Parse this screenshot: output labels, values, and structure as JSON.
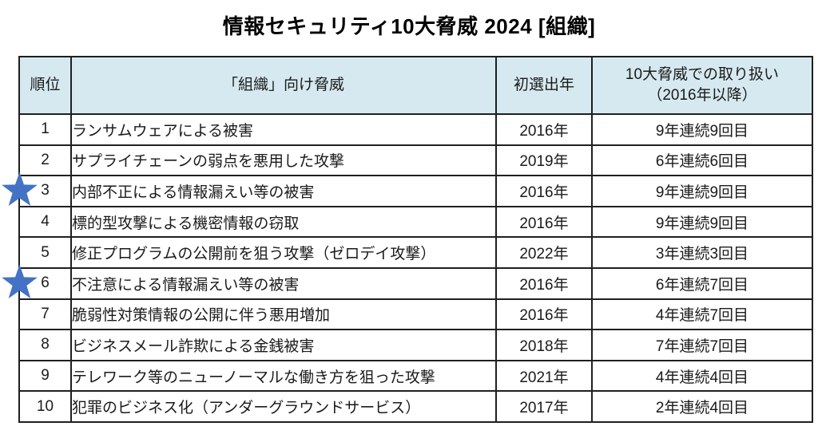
{
  "title": "情報セキュリティ10大脅威 2024 [組織]",
  "colors": {
    "header_bg": "#d6e9f0",
    "star_blue": "#4472c4",
    "border": "#1f1f1f"
  },
  "table": {
    "headers": [
      "順位",
      "「組織」向け脅威",
      "初選出年",
      "10大脅威での取り扱い\n（2016年以降）"
    ],
    "rows": [
      {
        "rank": "1",
        "threat": "ランサムウェアによる被害",
        "first_year": "2016年",
        "history": "9年連続9回目",
        "starred": false
      },
      {
        "rank": "2",
        "threat": "サプライチェーンの弱点を悪用した攻撃",
        "first_year": "2019年",
        "history": "6年連続6回目",
        "starred": false
      },
      {
        "rank": "3",
        "threat": "内部不正による情報漏えい等の被害",
        "first_year": "2016年",
        "history": "9年連続9回目",
        "starred": true
      },
      {
        "rank": "4",
        "threat": "標的型攻撃による機密情報の窃取",
        "first_year": "2016年",
        "history": "9年連続9回目",
        "starred": false
      },
      {
        "rank": "5",
        "threat": "修正プログラムの公開前を狙う攻撃（ゼロデイ攻撃）",
        "first_year": "2022年",
        "history": "3年連続3回目",
        "starred": false
      },
      {
        "rank": "6",
        "threat": "不注意による情報漏えい等の被害",
        "first_year": "2016年",
        "history": "6年連続7回目",
        "starred": true
      },
      {
        "rank": "7",
        "threat": "脆弱性対策情報の公開に伴う悪用増加",
        "first_year": "2016年",
        "history": "4年連続7回目",
        "starred": false
      },
      {
        "rank": "8",
        "threat": "ビジネスメール詐欺による金銭被害",
        "first_year": "2018年",
        "history": "7年連続7回目",
        "starred": false
      },
      {
        "rank": "9",
        "threat": "テレワーク等のニューノーマルな働き方を狙った攻撃",
        "first_year": "2021年",
        "history": "4年連続4回目",
        "starred": false
      },
      {
        "rank": "10",
        "threat": "犯罪のビジネス化（アンダーグラウンドサービス）",
        "first_year": "2017年",
        "history": "2年連続4回目",
        "starred": false
      }
    ]
  }
}
